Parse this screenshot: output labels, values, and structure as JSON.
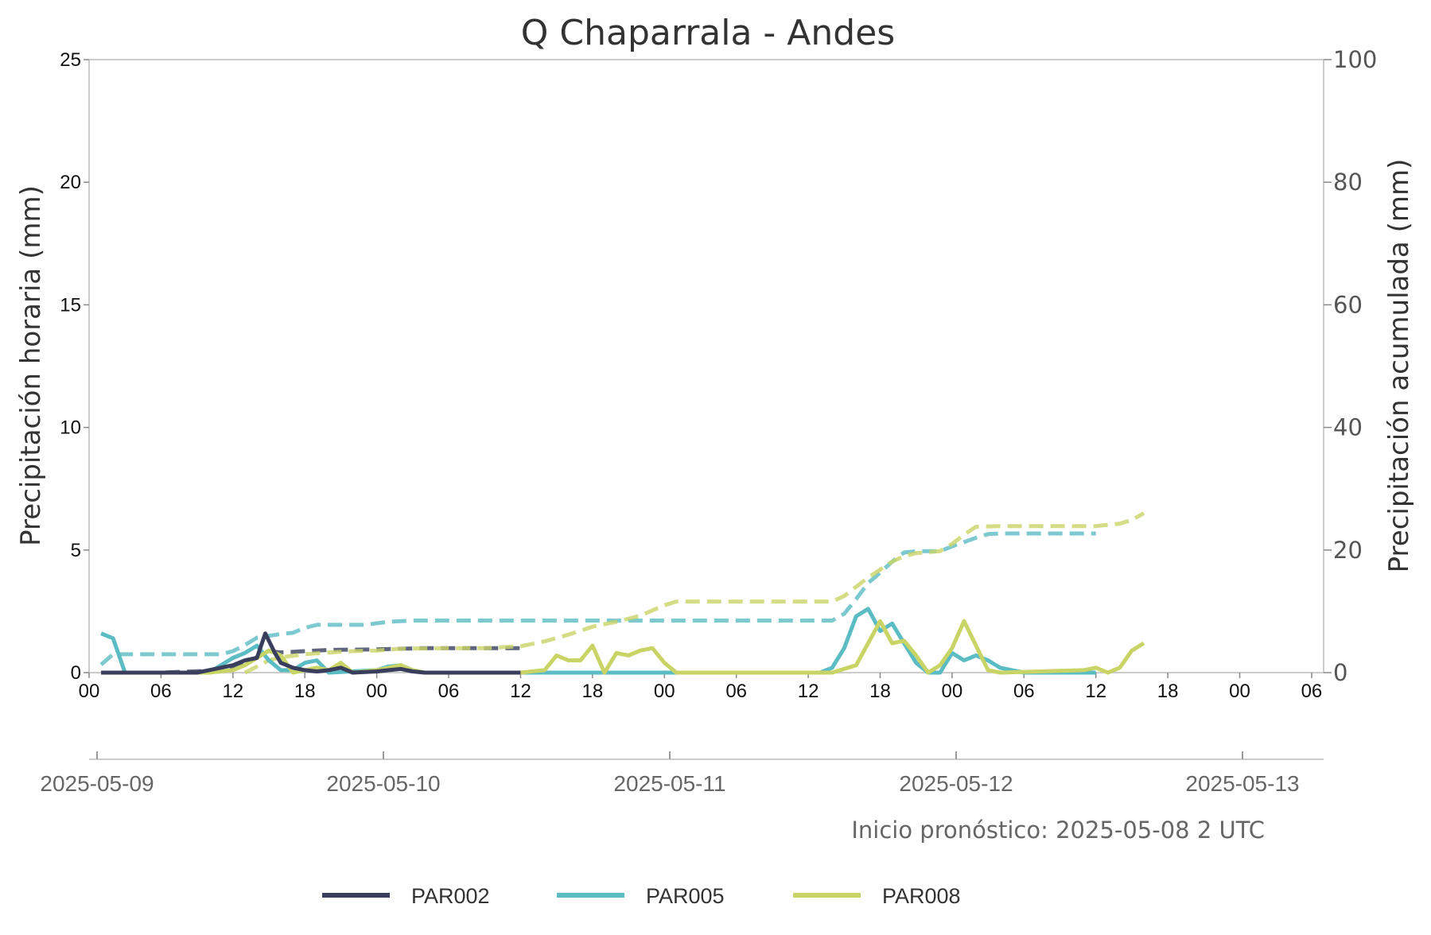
{
  "chart_data": {
    "type": "line",
    "title": "Q Chaparrala - Andes",
    "ylabel": "Precipitación horaria (mm)",
    "y2label": "Precipitación acumulada (mm)",
    "ylim": [
      0,
      25
    ],
    "y2lim": [
      0,
      100
    ],
    "yticks": [
      "0",
      "5",
      "10",
      "15",
      "20",
      "25"
    ],
    "y2ticks": [
      "0",
      "20",
      "40",
      "60",
      "80",
      "100"
    ],
    "xlim_hours": [
      0,
      103
    ],
    "hour_ticks": [
      "00",
      "06",
      "12",
      "18",
      "00",
      "06",
      "12",
      "18",
      "00",
      "06",
      "12",
      "18",
      "00",
      "06",
      "12",
      "18",
      "00",
      "06"
    ],
    "date_ticks": [
      "2025-05-09",
      "2025-05-10",
      "2025-05-11",
      "2025-05-12",
      "2025-05-13"
    ],
    "grid": false,
    "legend_position": "bottom",
    "annotation": "Inicio pronóstico: 2025-05-08 2 UTC",
    "series": [
      {
        "name": "PAR002",
        "color": "#383e5c",
        "hourly": [
          [
            1,
            0
          ],
          [
            3,
            0
          ],
          [
            5,
            0
          ],
          [
            7,
            0
          ],
          [
            9,
            0
          ],
          [
            10,
            0.1
          ],
          [
            11,
            0.2
          ],
          [
            12,
            0.3
          ],
          [
            13,
            0.5
          ],
          [
            14,
            0.6
          ],
          [
            14.7,
            1.6
          ],
          [
            15.5,
            0.8
          ],
          [
            16,
            0.4
          ],
          [
            17,
            0.2
          ],
          [
            18,
            0.1
          ],
          [
            19,
            0.05
          ],
          [
            20,
            0.1
          ],
          [
            21,
            0.2
          ],
          [
            22,
            0
          ],
          [
            24,
            0.05
          ],
          [
            25,
            0.1
          ],
          [
            26,
            0.15
          ],
          [
            27,
            0.05
          ],
          [
            28,
            0
          ],
          [
            36,
            0
          ]
        ],
        "cumulative": [
          [
            1,
            0
          ],
          [
            6,
            0
          ],
          [
            10,
            0.3
          ],
          [
            12,
            1
          ],
          [
            13,
            1.6
          ],
          [
            14,
            2.5
          ],
          [
            15,
            3.5
          ],
          [
            16,
            3.3
          ],
          [
            18,
            3.5
          ],
          [
            20,
            3.7
          ],
          [
            24,
            3.8
          ],
          [
            28,
            4
          ],
          [
            36,
            4
          ]
        ]
      },
      {
        "name": "PAR005",
        "color": "#5bbcc4",
        "hourly": [
          [
            1,
            1.6
          ],
          [
            2,
            1.4
          ],
          [
            3,
            0
          ],
          [
            6,
            0
          ],
          [
            10,
            0
          ],
          [
            11,
            0.3
          ],
          [
            12,
            0.6
          ],
          [
            13,
            0.8
          ],
          [
            14,
            1.1
          ],
          [
            15,
            0.5
          ],
          [
            16,
            0.1
          ],
          [
            17,
            0.1
          ],
          [
            18,
            0.4
          ],
          [
            19,
            0.5
          ],
          [
            20,
            0
          ],
          [
            24,
            0.1
          ],
          [
            25,
            0.25
          ],
          [
            26,
            0.3
          ],
          [
            27,
            0.1
          ],
          [
            28,
            0
          ],
          [
            48,
            0
          ],
          [
            61,
            0
          ],
          [
            62,
            0.2
          ],
          [
            63,
            1
          ],
          [
            64,
            2.3
          ],
          [
            65,
            2.6
          ],
          [
            66,
            1.7
          ],
          [
            67,
            2
          ],
          [
            68,
            1.2
          ],
          [
            69,
            0.4
          ],
          [
            70,
            0
          ],
          [
            71,
            0
          ],
          [
            72,
            0.8
          ],
          [
            73,
            0.5
          ],
          [
            74,
            0.7
          ],
          [
            75,
            0.5
          ],
          [
            76,
            0.2
          ],
          [
            77,
            0.1
          ],
          [
            78,
            0
          ],
          [
            84,
            0
          ]
        ],
        "cumulative": [
          [
            1,
            1.3
          ],
          [
            2,
            3
          ],
          [
            6,
            3
          ],
          [
            11,
            3
          ],
          [
            12,
            3.5
          ],
          [
            13,
            4.5
          ],
          [
            14,
            5.7
          ],
          [
            15,
            6
          ],
          [
            16,
            6.3
          ],
          [
            17,
            6.5
          ],
          [
            18,
            7.3
          ],
          [
            19,
            7.8
          ],
          [
            21,
            7.8
          ],
          [
            23,
            7.8
          ],
          [
            25,
            8.3
          ],
          [
            27,
            8.5
          ],
          [
            48,
            8.5
          ],
          [
            62,
            8.5
          ],
          [
            63,
            9.6
          ],
          [
            64,
            12
          ],
          [
            65,
            14.6
          ],
          [
            66,
            16.3
          ],
          [
            67,
            18.1
          ],
          [
            68,
            19.6
          ],
          [
            69,
            19.8
          ],
          [
            71,
            19.8
          ],
          [
            72,
            20.6
          ],
          [
            73,
            21.3
          ],
          [
            74,
            22
          ],
          [
            75,
            22.6
          ],
          [
            76,
            22.7
          ],
          [
            84,
            22.7
          ]
        ]
      },
      {
        "name": "PAR008",
        "color": "#c9d466",
        "hourly": [
          [
            1,
            0
          ],
          [
            10,
            0
          ],
          [
            12,
            0.1
          ],
          [
            13,
            0.3
          ],
          [
            14,
            0.6
          ],
          [
            15,
            0.9
          ],
          [
            16,
            0.7
          ],
          [
            17,
            0
          ],
          [
            18,
            0.1
          ],
          [
            19,
            0.2
          ],
          [
            20,
            0.1
          ],
          [
            21,
            0.4
          ],
          [
            22,
            0
          ],
          [
            24,
            0.1
          ],
          [
            25,
            0.2
          ],
          [
            26,
            0.3
          ],
          [
            27,
            0.1
          ],
          [
            28,
            0
          ],
          [
            33,
            0
          ],
          [
            36,
            0
          ],
          [
            38,
            0.1
          ],
          [
            39,
            0.7
          ],
          [
            40,
            0.5
          ],
          [
            41,
            0.5
          ],
          [
            42,
            1.1
          ],
          [
            43,
            0
          ],
          [
            44,
            0.8
          ],
          [
            45,
            0.7
          ],
          [
            46,
            0.9
          ],
          [
            47,
            1
          ],
          [
            48,
            0.4
          ],
          [
            49,
            0
          ],
          [
            62,
            0
          ],
          [
            64,
            0.3
          ],
          [
            65,
            1.2
          ],
          [
            66,
            2.1
          ],
          [
            67,
            1.2
          ],
          [
            68,
            1.3
          ],
          [
            69,
            0.7
          ],
          [
            70,
            0
          ],
          [
            71,
            0.3
          ],
          [
            72,
            1
          ],
          [
            73,
            2.1
          ],
          [
            74,
            1.1
          ],
          [
            75,
            0.1
          ],
          [
            76,
            0
          ],
          [
            83,
            0.1
          ],
          [
            84,
            0.2
          ],
          [
            85,
            0
          ],
          [
            86,
            0.2
          ],
          [
            87,
            0.9
          ],
          [
            88,
            1.2
          ]
        ],
        "cumulative": [
          [
            13,
            0
          ],
          [
            14,
            1
          ],
          [
            15,
            2
          ],
          [
            16,
            2.5
          ],
          [
            18,
            3
          ],
          [
            20,
            3.3
          ],
          [
            22,
            3.5
          ],
          [
            24,
            3.6
          ],
          [
            26,
            3.9
          ],
          [
            30,
            4
          ],
          [
            33,
            4
          ],
          [
            36,
            4.3
          ],
          [
            38,
            5.1
          ],
          [
            40,
            6.2
          ],
          [
            42,
            7.5
          ],
          [
            44,
            8.3
          ],
          [
            46,
            9.3
          ],
          [
            48,
            11
          ],
          [
            49,
            11.6
          ],
          [
            55,
            11.6
          ],
          [
            62,
            11.6
          ],
          [
            63,
            12.5
          ],
          [
            64,
            14
          ],
          [
            65,
            15.5
          ],
          [
            66,
            16.8
          ],
          [
            67,
            18.1
          ],
          [
            68,
            19
          ],
          [
            69,
            19.5
          ],
          [
            71,
            19.8
          ],
          [
            72,
            21
          ],
          [
            73,
            22.5
          ],
          [
            74,
            23.8
          ],
          [
            76,
            23.9
          ],
          [
            84,
            23.9
          ],
          [
            86,
            24.3
          ],
          [
            87,
            24.9
          ],
          [
            88,
            26
          ]
        ]
      }
    ]
  }
}
